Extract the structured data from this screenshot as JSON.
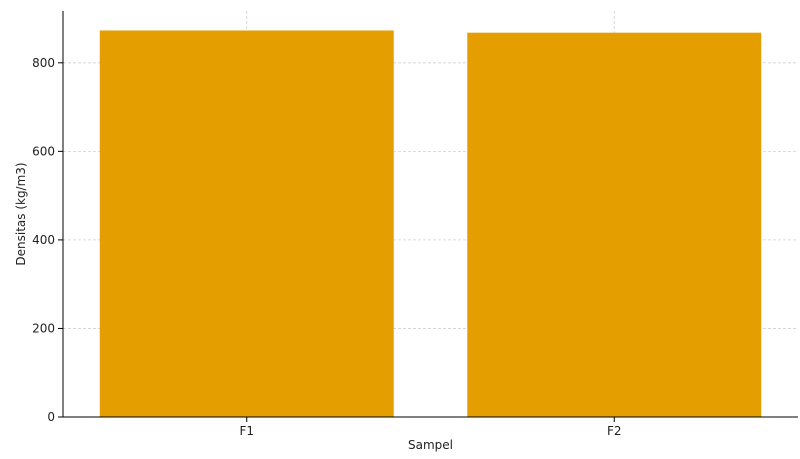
{
  "chart_data": {
    "type": "bar",
    "title": "",
    "xlabel": "Sampel",
    "ylabel": "Densitas (kg/m3)",
    "categories": [
      "F1",
      "F2"
    ],
    "values": [
      873,
      868
    ],
    "ylim": [
      0,
      917
    ],
    "yticks": [
      0,
      200,
      400,
      600,
      800
    ],
    "grid": true,
    "bar_color": "#e59e00",
    "grid_color": "#d0d0d0",
    "axis_color": "#000000"
  }
}
